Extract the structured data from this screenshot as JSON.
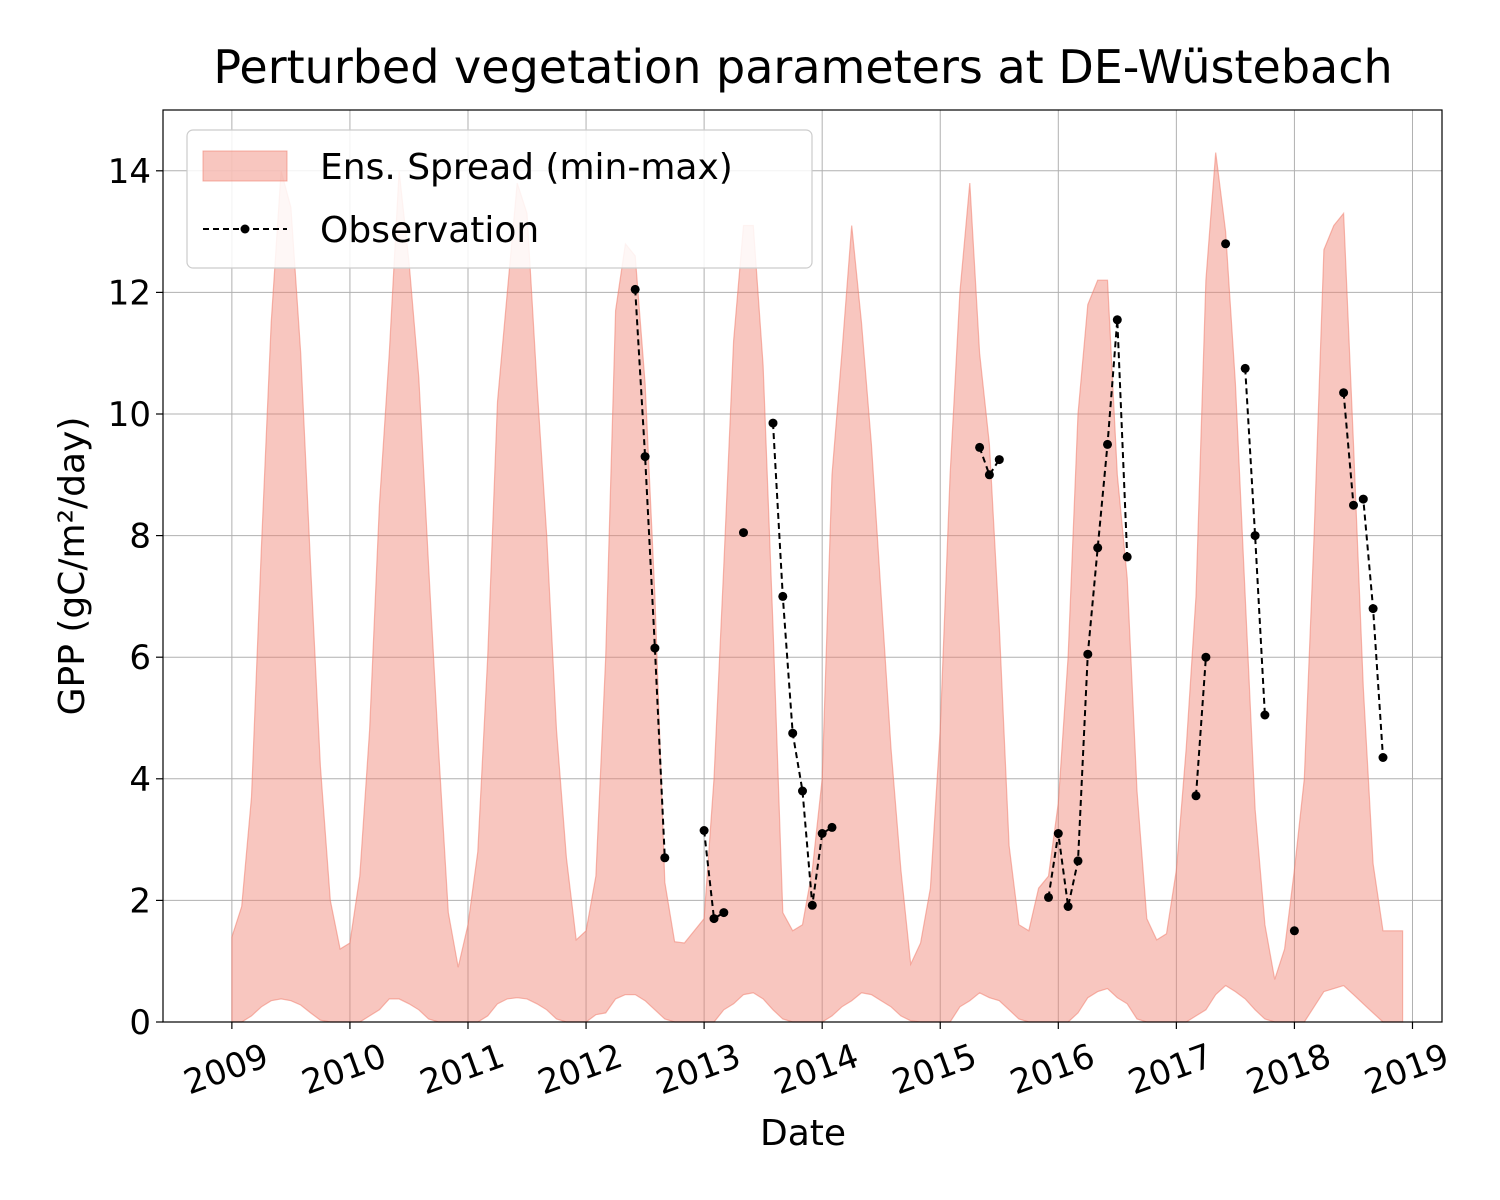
{
  "chart_data": {
    "type": "area",
    "title": "Perturbed vegetation parameters at DE-Wüstebach",
    "xlabel": "Date",
    "ylabel": "GPP  (gC/m²/day)",
    "xlim": [
      "2008-06-01",
      "2019-04-01"
    ],
    "ylim": [
      0,
      15
    ],
    "x_ticks": [
      "2009",
      "2010",
      "2011",
      "2012",
      "2013",
      "2014",
      "2015",
      "2016",
      "2017",
      "2018",
      "2019"
    ],
    "y_ticks": [
      "0",
      "2",
      "4",
      "6",
      "8",
      "10",
      "12",
      "14"
    ],
    "grid": true,
    "legend_position": "top-left",
    "colors": {
      "spread": "#f08070",
      "observation": "#000000"
    },
    "series": [
      {
        "name": "Ens. Spread (min-max)",
        "kind": "band",
        "x": [
          "2009-01",
          "2009-02",
          "2009-03",
          "2009-04",
          "2009-05",
          "2009-06",
          "2009-07",
          "2009-08",
          "2009-09",
          "2009-10",
          "2009-11",
          "2009-12",
          "2010-01",
          "2010-02",
          "2010-03",
          "2010-04",
          "2010-05",
          "2010-06",
          "2010-07",
          "2010-08",
          "2010-09",
          "2010-10",
          "2010-11",
          "2010-12",
          "2011-01",
          "2011-02",
          "2011-03",
          "2011-04",
          "2011-05",
          "2011-06",
          "2011-07",
          "2011-08",
          "2011-09",
          "2011-10",
          "2011-11",
          "2011-12",
          "2012-01",
          "2012-02",
          "2012-03",
          "2012-04",
          "2012-05",
          "2012-06",
          "2012-07",
          "2012-08",
          "2012-09",
          "2012-10",
          "2012-11",
          "2012-12",
          "2013-01",
          "2013-02",
          "2013-03",
          "2013-04",
          "2013-05",
          "2013-06",
          "2013-07",
          "2013-08",
          "2013-09",
          "2013-10",
          "2013-11",
          "2013-12",
          "2014-01",
          "2014-02",
          "2014-03",
          "2014-04",
          "2014-05",
          "2014-06",
          "2014-07",
          "2014-08",
          "2014-09",
          "2014-10",
          "2014-11",
          "2014-12",
          "2015-01",
          "2015-02",
          "2015-03",
          "2015-04",
          "2015-05",
          "2015-06",
          "2015-07",
          "2015-08",
          "2015-09",
          "2015-10",
          "2015-11",
          "2015-12",
          "2016-01",
          "2016-02",
          "2016-03",
          "2016-04",
          "2016-05",
          "2016-06",
          "2016-07",
          "2016-08",
          "2016-09",
          "2016-10",
          "2016-11",
          "2016-12",
          "2017-01",
          "2017-02",
          "2017-03",
          "2017-04",
          "2017-05",
          "2017-06",
          "2017-07",
          "2017-08",
          "2017-09",
          "2017-10",
          "2017-11",
          "2017-12",
          "2018-01",
          "2018-02",
          "2018-03",
          "2018-04",
          "2018-05",
          "2018-06",
          "2018-07",
          "2018-08",
          "2018-09",
          "2018-10",
          "2018-11",
          "2018-12"
        ],
        "min": [
          0,
          0,
          0.1,
          0.25,
          0.35,
          0.38,
          0.35,
          0.28,
          0.15,
          0.03,
          0,
          0,
          0,
          0,
          0.1,
          0.2,
          0.38,
          0.38,
          0.3,
          0.2,
          0.05,
          0,
          0,
          0,
          0,
          0,
          0.1,
          0.3,
          0.38,
          0.4,
          0.38,
          0.3,
          0.2,
          0.05,
          0,
          0,
          0,
          0.12,
          0.15,
          0.38,
          0.45,
          0.45,
          0.35,
          0.2,
          0.05,
          0,
          0,
          0,
          0,
          0,
          0.2,
          0.3,
          0.45,
          0.48,
          0.38,
          0.2,
          0.05,
          0,
          0,
          0,
          0,
          0.1,
          0.25,
          0.35,
          0.48,
          0.45,
          0.35,
          0.25,
          0.1,
          0.02,
          0,
          0,
          0,
          0,
          0.25,
          0.35,
          0.48,
          0.4,
          0.35,
          0.2,
          0.05,
          0,
          0,
          0,
          0,
          0,
          0.15,
          0.4,
          0.5,
          0.55,
          0.4,
          0.3,
          0.05,
          0,
          0,
          0,
          0,
          0,
          0.1,
          0.2,
          0.45,
          0.6,
          0.5,
          0.38,
          0.2,
          0.05,
          0,
          0,
          0,
          0,
          0.25,
          0.5,
          0.55,
          0.6,
          0.45,
          0.3,
          0.15,
          0,
          0,
          0
        ],
        "max": [
          1.4,
          1.9,
          3.7,
          7.8,
          11.5,
          14.0,
          13.4,
          11.0,
          7.5,
          4.2,
          2.0,
          1.2,
          1.3,
          2.4,
          4.8,
          8.5,
          11.0,
          14.0,
          12.5,
          10.6,
          7.5,
          4.5,
          1.8,
          0.9,
          1.6,
          2.8,
          6.0,
          10.2,
          12.0,
          13.8,
          13.3,
          10.5,
          8.0,
          4.8,
          2.7,
          1.35,
          1.5,
          2.4,
          6.0,
          11.7,
          12.8,
          12.6,
          10.5,
          7.0,
          2.3,
          1.32,
          1.3,
          1.5,
          1.7,
          4.0,
          7.5,
          11.2,
          13.1,
          13.1,
          10.8,
          6.5,
          1.8,
          1.5,
          1.6,
          2.5,
          4.0,
          9.0,
          11.0,
          13.1,
          11.5,
          9.5,
          7.0,
          4.5,
          2.5,
          0.95,
          1.3,
          2.2,
          4.8,
          9.0,
          12.0,
          13.8,
          11.0,
          9.5,
          6.5,
          2.9,
          1.6,
          1.5,
          2.2,
          2.4,
          3.6,
          6.0,
          10.0,
          11.8,
          12.2,
          12.2,
          9.0,
          7.3,
          3.8,
          1.7,
          1.35,
          1.45,
          2.5,
          4.5,
          7.0,
          12.2,
          14.3,
          13.0,
          10.5,
          7.0,
          3.5,
          1.6,
          0.7,
          1.2,
          2.5,
          4.0,
          8.0,
          12.7,
          13.1,
          13.3,
          9.5,
          5.5,
          2.6,
          1.5,
          1.5,
          1.5
        ]
      },
      {
        "name": "Observation",
        "kind": "line",
        "segments": [
          [
            [
              "2012-06",
              12.05
            ],
            [
              "2012-07",
              9.3
            ],
            [
              "2012-08",
              6.15
            ],
            [
              "2012-09",
              2.7
            ]
          ],
          [
            [
              "2013-01",
              3.15
            ],
            [
              "2013-02",
              1.7
            ],
            [
              "2013-03",
              1.8
            ]
          ],
          [
            [
              "2013-05",
              8.05
            ]
          ],
          [
            [
              "2013-08",
              9.85
            ],
            [
              "2013-09",
              7.0
            ],
            [
              "2013-10",
              4.75
            ],
            [
              "2013-11",
              3.8
            ],
            [
              "2013-12",
              1.92
            ],
            [
              "2014-01",
              3.1
            ],
            [
              "2014-02",
              3.2
            ]
          ],
          [
            [
              "2015-05",
              9.45
            ],
            [
              "2015-06",
              9.0
            ],
            [
              "2015-07",
              9.25
            ]
          ],
          [
            [
              "2015-12",
              2.05
            ],
            [
              "2016-01",
              3.1
            ],
            [
              "2016-02",
              1.9
            ],
            [
              "2016-03",
              2.65
            ],
            [
              "2016-04",
              6.05
            ],
            [
              "2016-05",
              7.8
            ],
            [
              "2016-06",
              9.5
            ],
            [
              "2016-07",
              11.55
            ],
            [
              "2016-08",
              7.65
            ]
          ],
          [
            [
              "2017-03",
              3.72
            ],
            [
              "2017-04",
              6.0
            ]
          ],
          [
            [
              "2017-06",
              12.8
            ]
          ],
          [
            [
              "2017-08",
              10.75
            ],
            [
              "2017-09",
              8.0
            ],
            [
              "2017-10",
              5.05
            ]
          ],
          [
            [
              "2018-01",
              1.5
            ]
          ],
          [
            [
              "2018-06",
              10.35
            ],
            [
              "2018-07",
              8.5
            ],
            [
              "2018-08",
              8.6
            ],
            [
              "2018-09",
              6.8
            ],
            [
              "2018-10",
              4.35
            ]
          ]
        ]
      }
    ]
  }
}
